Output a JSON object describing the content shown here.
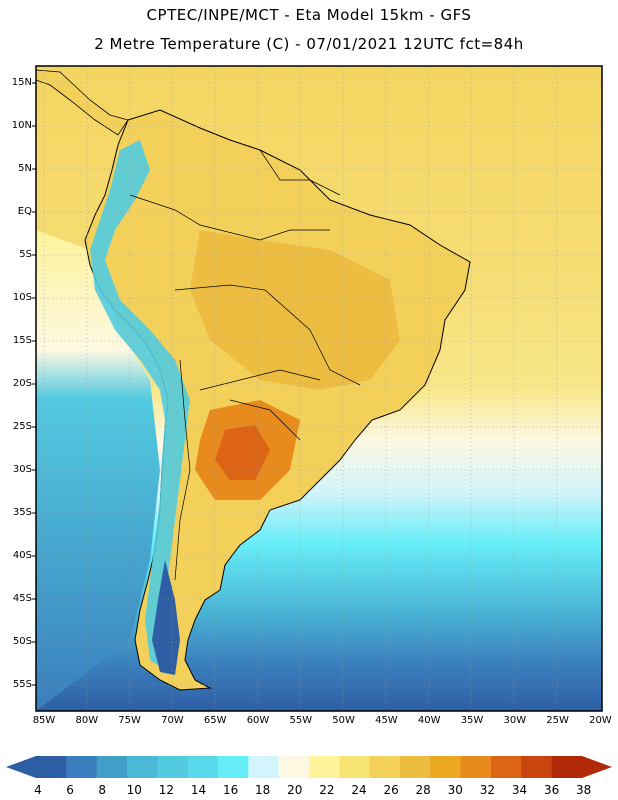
{
  "title": {
    "line1": "CPTEC/INPE/MCT -  Eta Model 15km - GFS",
    "line2": "2 Metre Temperature (C) - 07/01/2021 12UTC fct=84h"
  },
  "lat_labels": [
    "15N",
    "10N",
    "5N",
    "EQ",
    "5S",
    "10S",
    "15S",
    "20S",
    "25S",
    "30S",
    "35S",
    "40S",
    "45S",
    "50S",
    "55S"
  ],
  "lon_labels": [
    "85W",
    "80W",
    "75W",
    "70W",
    "65W",
    "60W",
    "55W",
    "50W",
    "45W",
    "40W",
    "35W",
    "30W",
    "25W",
    "20W"
  ],
  "colorbar": {
    "labels": [
      "4",
      "6",
      "8",
      "10",
      "12",
      "14",
      "16",
      "18",
      "20",
      "22",
      "24",
      "26",
      "28",
      "30",
      "32",
      "34",
      "36",
      "38"
    ],
    "colors": [
      "#2e5fa5",
      "#3a7ebd",
      "#42a0c8",
      "#4bb8d8",
      "#52cbe0",
      "#5ad9ea",
      "#66eef8",
      "#d2f4fa",
      "#fdf8e2",
      "#fdf39a",
      "#f8e472",
      "#f2d05a",
      "#ecbd40",
      "#eba823",
      "#e98a1c",
      "#dc6414",
      "#c84510",
      "#b02a0a"
    ]
  },
  "colors": {
    "land_default": "#f2d05a",
    "ocean_north": "#f6d868",
    "ocean_cool": "#52cbe0",
    "ocean_cold": "#3a7ebd"
  }
}
